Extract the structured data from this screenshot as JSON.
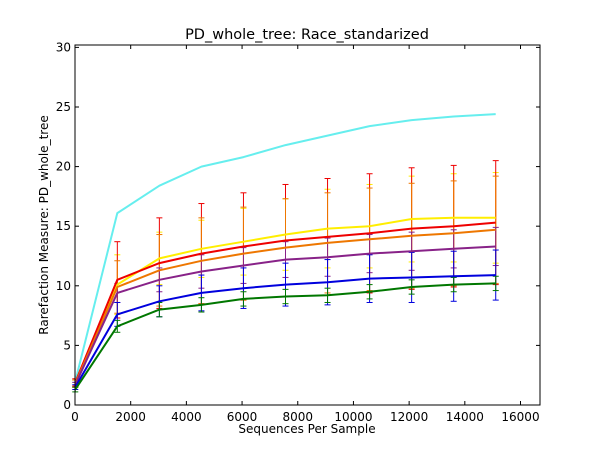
{
  "chart_data": {
    "type": "line",
    "title": "PD_whole_tree: Race_standarized",
    "xlabel": "Sequences Per Sample",
    "ylabel": "Rarefaction Measure: PD_whole_tree",
    "xlim": [
      0,
      16700
    ],
    "ylim": [
      0,
      30.2
    ],
    "xticks": [
      0,
      2000,
      4000,
      6000,
      8000,
      10000,
      12000,
      14000,
      16000
    ],
    "yticks": [
      0,
      5,
      10,
      15,
      20,
      25,
      30
    ],
    "grid": false,
    "legend": "none",
    "x": [
      10,
      1520,
      3030,
      4540,
      6050,
      7560,
      9070,
      10580,
      12090,
      13600,
      15110
    ],
    "series": [
      {
        "color": "#66eeee",
        "values": [
          2.0,
          16.1,
          18.4,
          20.0,
          20.8,
          21.8,
          22.6,
          23.4,
          23.9,
          24.2,
          24.4
        ],
        "err": [
          0.1,
          0,
          0,
          0,
          0,
          0,
          0,
          0,
          0,
          0,
          0
        ]
      },
      {
        "color": "#ffee00",
        "values": [
          1.8,
          10.1,
          12.3,
          13.1,
          13.7,
          14.3,
          14.8,
          15.0,
          15.6,
          15.7,
          15.7
        ],
        "err": [
          0.3,
          2.5,
          2.2,
          2.4,
          2.8,
          3.0,
          3.3,
          3.5,
          3.6,
          3.7,
          3.8
        ]
      },
      {
        "color": "#ee0000",
        "values": [
          1.9,
          10.5,
          11.9,
          12.7,
          13.3,
          13.8,
          14.1,
          14.4,
          14.8,
          15.0,
          15.3
        ],
        "err": [
          0.3,
          3.2,
          3.8,
          4.2,
          4.5,
          4.7,
          4.9,
          5.0,
          5.1,
          5.1,
          5.2
        ]
      },
      {
        "color": "#ee7700",
        "values": [
          1.8,
          9.9,
          11.3,
          12.1,
          12.7,
          13.2,
          13.6,
          13.9,
          14.2,
          14.4,
          14.7
        ],
        "err": [
          0.3,
          2.2,
          3.0,
          3.6,
          3.9,
          4.1,
          4.2,
          4.3,
          4.4,
          4.4,
          4.5
        ]
      },
      {
        "color": "#882288",
        "values": [
          1.7,
          9.4,
          10.5,
          11.2,
          11.7,
          12.2,
          12.4,
          12.7,
          12.9,
          13.1,
          13.3
        ],
        "err": [
          0.2,
          0.8,
          1.0,
          1.4,
          1.5,
          1.5,
          1.6,
          1.6,
          1.6,
          1.6,
          1.6
        ]
      },
      {
        "color": "#0000dd",
        "values": [
          1.5,
          7.6,
          8.7,
          9.4,
          9.8,
          10.1,
          10.3,
          10.6,
          10.7,
          10.8,
          10.9
        ],
        "err": [
          0.2,
          1.0,
          1.3,
          1.5,
          1.7,
          1.8,
          1.9,
          2.0,
          2.1,
          2.1,
          2.1
        ]
      },
      {
        "color": "#007700",
        "values": [
          1.3,
          6.6,
          8.0,
          8.4,
          8.9,
          9.1,
          9.2,
          9.5,
          9.9,
          10.1,
          10.2
        ],
        "err": [
          0.2,
          0.5,
          0.6,
          0.6,
          0.6,
          0.6,
          0.6,
          0.6,
          0.6,
          0.6,
          0.6
        ]
      }
    ]
  }
}
